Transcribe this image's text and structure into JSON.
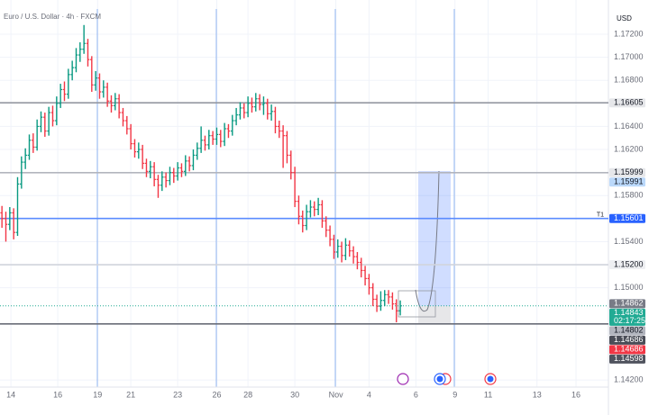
{
  "chart_data": {
    "type": "ohlc",
    "title": "Euro / U.S. Dollar · 4h · FXCM",
    "currency": "USD",
    "up_color": "#089981",
    "down_color": "#f23645",
    "grid": true,
    "open": [
      1.1565,
      1.156,
      1.1555,
      1.1565,
      1.1548,
      1.159,
      1.1609,
      1.1615,
      1.1628,
      1.1622,
      1.164,
      1.1648,
      1.1636,
      1.1652,
      1.1645,
      1.166,
      1.1672,
      1.1668,
      1.1685,
      1.1691,
      1.1702,
      1.1707,
      1.1712,
      1.1698,
      1.1676,
      1.1682,
      1.167,
      1.1674,
      1.1662,
      1.1658,
      1.1664,
      1.1652,
      1.1645,
      1.1638,
      1.1625,
      1.1618,
      1.162,
      1.1608,
      1.1601,
      1.1605,
      1.1594,
      1.1589,
      1.1596,
      1.1593,
      1.16,
      1.1597,
      1.1604,
      1.1601,
      1.161,
      1.1606,
      1.1615,
      1.1621,
      1.1628,
      1.1624,
      1.1632,
      1.1629,
      1.1633,
      1.1627,
      1.1638,
      1.1636,
      1.1645,
      1.165,
      1.1656,
      1.1652,
      1.166,
      1.1657,
      1.1664,
      1.1659,
      1.166,
      1.1651,
      1.1653,
      1.164,
      1.1636,
      1.1632,
      1.1615,
      1.16,
      1.1575,
      1.1562,
      1.1554,
      1.1566,
      1.157,
      1.1568,
      1.1572,
      1.1558,
      1.155,
      1.1542,
      1.1531,
      1.1536,
      1.1528,
      1.1537,
      1.1532,
      1.1527,
      1.1522,
      1.1515,
      1.1508,
      1.15,
      1.149,
      1.1484,
      1.1489,
      1.1494,
      1.1492,
      1.1486,
      1.148
    ],
    "high": [
      1.1571,
      1.1566,
      1.157,
      1.1569,
      1.1596,
      1.1614,
      1.1621,
      1.1633,
      1.1634,
      1.1646,
      1.1653,
      1.1652,
      1.1657,
      1.1658,
      1.1666,
      1.1677,
      1.1679,
      1.169,
      1.1697,
      1.1708,
      1.1713,
      1.1728,
      1.1716,
      1.1701,
      1.1688,
      1.1686,
      1.168,
      1.1678,
      1.1667,
      1.1669,
      1.1668,
      1.1656,
      1.1649,
      1.1642,
      1.1629,
      1.1626,
      1.1624,
      1.1612,
      1.161,
      1.1609,
      1.1598,
      1.1601,
      1.16,
      1.1605,
      1.1604,
      1.1609,
      1.1608,
      1.1615,
      1.1614,
      1.162,
      1.1626,
      1.164,
      1.1632,
      1.1637,
      1.1636,
      1.1639,
      1.1637,
      1.1643,
      1.1642,
      1.165,
      1.1656,
      1.1661,
      1.166,
      1.1666,
      1.1665,
      1.1669,
      1.1668,
      1.1666,
      1.1664,
      1.1659,
      1.1657,
      1.1645,
      1.1641,
      1.1636,
      1.1619,
      1.1605,
      1.158,
      1.1567,
      1.1572,
      1.1576,
      1.1575,
      1.1578,
      1.1576,
      1.1562,
      1.1554,
      1.1546,
      1.1542,
      1.154,
      1.1543,
      1.1541,
      1.1536,
      1.1531,
      1.1526,
      1.1519,
      1.1512,
      1.1504,
      1.1494,
      1.1497,
      1.1498,
      1.1498,
      1.1496,
      1.149,
      1.1489
    ],
    "low": [
      1.1552,
      1.154,
      1.155,
      1.1542,
      1.1545,
      1.1586,
      1.1603,
      1.1611,
      1.1617,
      1.1619,
      1.1635,
      1.1631,
      1.1632,
      1.164,
      1.1641,
      1.1656,
      1.1662,
      1.1664,
      1.168,
      1.1687,
      1.1696,
      1.1703,
      1.1692,
      1.167,
      1.1671,
      1.1664,
      1.1665,
      1.1657,
      1.1652,
      1.1654,
      1.1647,
      1.164,
      1.1633,
      1.162,
      1.1613,
      1.1612,
      1.1603,
      1.1596,
      1.1595,
      1.1588,
      1.1578,
      1.1584,
      1.1587,
      1.1589,
      1.1591,
      1.1593,
      1.1596,
      1.1597,
      1.1601,
      1.1602,
      1.1611,
      1.1617,
      1.1619,
      1.162,
      1.1624,
      1.1624,
      1.1622,
      1.1623,
      1.163,
      1.1632,
      1.1641,
      1.1646,
      1.1647,
      1.1648,
      1.1652,
      1.1653,
      1.1654,
      1.165,
      1.1646,
      1.1645,
      1.1634,
      1.163,
      1.1604,
      1.1608,
      1.1594,
      1.157,
      1.1555,
      1.1548,
      1.155,
      1.1561,
      1.1562,
      1.1563,
      1.1552,
      1.1544,
      1.1536,
      1.1525,
      1.1526,
      1.1522,
      1.1524,
      1.1527,
      1.1521,
      1.1516,
      1.1509,
      1.1502,
      1.1494,
      1.1484,
      1.1479,
      1.148,
      1.1484,
      1.1486,
      1.1481,
      1.147,
      1.1476
    ],
    "close": [
      1.156,
      1.1555,
      1.1565,
      1.1548,
      1.159,
      1.1609,
      1.1615,
      1.1628,
      1.1622,
      1.164,
      1.1648,
      1.1636,
      1.1652,
      1.1645,
      1.166,
      1.1672,
      1.1668,
      1.1685,
      1.1691,
      1.1702,
      1.1707,
      1.1712,
      1.1698,
      1.1676,
      1.1682,
      1.167,
      1.1674,
      1.1662,
      1.1658,
      1.1664,
      1.1652,
      1.1645,
      1.1638,
      1.1625,
      1.1618,
      1.162,
      1.1608,
      1.1601,
      1.1605,
      1.1594,
      1.1589,
      1.1596,
      1.1593,
      1.16,
      1.1597,
      1.1604,
      1.1601,
      1.161,
      1.1606,
      1.1615,
      1.1621,
      1.1628,
      1.1624,
      1.1632,
      1.1629,
      1.1633,
      1.1627,
      1.1638,
      1.1636,
      1.1645,
      1.165,
      1.1656,
      1.1652,
      1.166,
      1.1657,
      1.1664,
      1.1659,
      1.166,
      1.1651,
      1.1653,
      1.164,
      1.1636,
      1.1632,
      1.1615,
      1.16,
      1.1575,
      1.1562,
      1.1554,
      1.1566,
      1.157,
      1.1568,
      1.1572,
      1.1558,
      1.155,
      1.1542,
      1.1531,
      1.1536,
      1.1528,
      1.1537,
      1.1532,
      1.1527,
      1.1522,
      1.1515,
      1.1508,
      1.15,
      1.149,
      1.1484,
      1.1489,
      1.1494,
      1.1492,
      1.1486,
      1.148,
      1.14843
    ],
    "xlim": [
      -0.5,
      155.3
    ],
    "xticks": [
      {
        "value": 2.3,
        "label": "14"
      },
      {
        "value": 14.3,
        "label": "16"
      },
      {
        "value": 24.5,
        "label": "19"
      },
      {
        "value": 33,
        "label": "21"
      },
      {
        "value": 45,
        "label": "23"
      },
      {
        "value": 55,
        "label": "26"
      },
      {
        "value": 63,
        "label": "28"
      },
      {
        "value": 75,
        "label": "30"
      },
      {
        "value": 85.5,
        "label": "Nov"
      },
      {
        "value": 94,
        "label": "4"
      },
      {
        "value": 106,
        "label": "6"
      },
      {
        "value": 116,
        "label": "9"
      },
      {
        "value": 124.5,
        "label": "11"
      },
      {
        "value": 137,
        "label": "13"
      },
      {
        "value": 147,
        "label": "16"
      }
    ],
    "ylim": [
      1.14138,
      1.17497
    ],
    "yticks": [
      {
        "value": 1.172,
        "label": "1.17200"
      },
      {
        "value": 1.17,
        "label": "1.17000"
      },
      {
        "value": 1.168,
        "label": "1.16800"
      },
      {
        "value": 1.164,
        "label": "1.16400"
      },
      {
        "value": 1.162,
        "label": "1.16200"
      },
      {
        "value": 1.158,
        "label": "1.15800"
      },
      {
        "value": 1.154,
        "label": "1.15400"
      },
      {
        "value": 1.15,
        "label": "1.15000"
      },
      {
        "value": 1.142,
        "label": "1.14200"
      }
    ],
    "levels": [
      {
        "value": 1.16605,
        "label": "1.16605",
        "bg": "#e6e7ea",
        "fg": "#131722",
        "line": "#9598a1"
      },
      {
        "value": 1.15999,
        "label": "1.15999",
        "bg": "#e6e7ea",
        "fg": "#131722",
        "line": "#b2b5be"
      },
      {
        "value": 1.15991,
        "label": "1.15991",
        "bg": "#bbd9fb",
        "fg": "#131722"
      },
      {
        "value": 1.15601,
        "label": "1.15601",
        "bg": "#2962ff",
        "fg": "#ffffff",
        "line": "#5b8cff",
        "tag": "T1"
      },
      {
        "value": 1.152,
        "label": "1.15200",
        "bg": "#eeeff2",
        "fg": "#131722",
        "line": "#d1d4dc"
      },
      {
        "value": 1.14862,
        "label": "1.14862",
        "bg": "#787b86",
        "fg": "#ffffff"
      },
      {
        "value": 1.14843,
        "label": "1.14843",
        "sublabel": "02:17:25",
        "bg": "#22ab94",
        "fg": "#ffffff",
        "line": "#22ab94",
        "dash": true
      },
      {
        "value": 1.14802,
        "label": "1.14802",
        "bg": "#b2b5be",
        "fg": "#131722"
      },
      {
        "value": 1.14686,
        "label": "1.14686",
        "bg": "#4a4d57",
        "fg": "#ffffff",
        "line": "#6a6d78"
      },
      {
        "value": 1.14686,
        "label": "1.14686",
        "bg": "#f23645",
        "fg": "#ffffff"
      },
      {
        "value": 1.14598,
        "label": "1.14598",
        "bg": "#50535e",
        "fg": "#ffffff"
      }
    ]
  }
}
